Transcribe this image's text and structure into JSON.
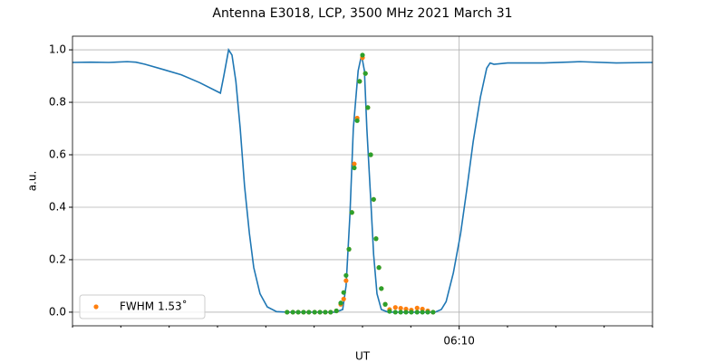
{
  "chart_data": {
    "type": "line",
    "title": "Antenna E3018, LCP, 3500 MHz 2021 March 31",
    "xlabel": "UT",
    "ylabel": "a.u.",
    "xlim": [
      362,
      374
    ],
    "ylim": [
      -0.052,
      1.052
    ],
    "xticks": [
      {
        "value": 370,
        "label": "06:10"
      }
    ],
    "xminorticks": [
      362,
      363,
      364,
      365,
      366,
      367,
      368,
      369,
      371,
      372,
      373,
      374
    ],
    "yticks": [
      {
        "value": 0,
        "label": "0.0"
      },
      0.2,
      0.4,
      0.6,
      0.8,
      {
        "value": 1,
        "label": "1.0"
      }
    ],
    "grid": true,
    "legend": "lower left",
    "series": [
      {
        "style": "line",
        "color": "#1f77b4",
        "x": [
          362.0,
          362.38,
          362.75,
          363.13,
          363.31,
          363.5,
          363.88,
          364.25,
          364.63,
          365.06,
          365.13,
          365.23,
          365.3,
          365.38,
          365.47,
          365.56,
          365.66,
          365.75,
          365.88,
          366.03,
          366.22,
          366.44,
          367.44,
          367.59,
          367.66,
          367.74,
          367.81,
          367.91,
          367.98,
          368.04,
          368.09,
          368.17,
          368.23,
          368.3,
          368.39,
          368.53,
          369.5,
          369.63,
          369.73,
          369.88,
          370.03,
          370.16,
          370.29,
          370.44,
          370.57,
          370.64,
          370.72,
          371.0,
          371.75,
          372.5,
          373.25,
          374.0
        ],
        "values": [
          0.952,
          0.953,
          0.952,
          0.955,
          0.953,
          0.945,
          0.925,
          0.905,
          0.875,
          0.835,
          0.9,
          1.0,
          0.98,
          0.88,
          0.7,
          0.48,
          0.3,
          0.17,
          0.07,
          0.02,
          0.002,
          0.0,
          0.0,
          0.01,
          0.1,
          0.37,
          0.7,
          0.92,
          0.98,
          0.92,
          0.7,
          0.43,
          0.22,
          0.07,
          0.01,
          0.0,
          0.0,
          0.01,
          0.04,
          0.15,
          0.3,
          0.47,
          0.65,
          0.82,
          0.93,
          0.95,
          0.945,
          0.95,
          0.95,
          0.955,
          0.95,
          0.952
        ]
      },
      {
        "style": "scatter",
        "name": "FWHM 1.53˚",
        "color": "#ff7f0e",
        "x": [
          366.44,
          366.56,
          366.67,
          366.78,
          366.89,
          367.01,
          367.12,
          367.23,
          367.34,
          367.46,
          367.55,
          367.61,
          367.66,
          367.72,
          367.78,
          367.83,
          367.89,
          367.94,
          368.0,
          368.06,
          368.11,
          368.17,
          368.23,
          368.28,
          368.34,
          368.39,
          368.47,
          368.56,
          368.68,
          368.79,
          368.9,
          369.01,
          369.13,
          369.24,
          369.35,
          369.46
        ],
        "values": [
          0,
          0,
          0,
          0,
          0,
          0,
          0,
          0,
          0,
          0.005,
          0.03,
          0.05,
          0.12,
          0.24,
          0.38,
          0.565,
          0.74,
          0.88,
          0.97,
          0.91,
          0.78,
          0.6,
          0.43,
          0.28,
          0.17,
          0.09,
          0.03,
          0.01,
          0.018,
          0.015,
          0.012,
          0.008,
          0.016,
          0.012,
          0.005,
          0
        ]
      },
      {
        "style": "scatter",
        "color": "#2ca02c",
        "x": [
          366.44,
          366.56,
          366.67,
          366.78,
          366.89,
          367.01,
          367.12,
          367.23,
          367.34,
          367.46,
          367.55,
          367.61,
          367.66,
          367.72,
          367.78,
          367.83,
          367.89,
          367.94,
          368.0,
          368.06,
          368.11,
          368.17,
          368.23,
          368.28,
          368.34,
          368.39,
          368.47,
          368.56,
          368.68,
          368.79,
          368.9,
          369.01,
          369.13,
          369.24,
          369.35,
          369.46
        ],
        "values": [
          0,
          0,
          0,
          0,
          0,
          0,
          0,
          0,
          0,
          0.005,
          0.035,
          0.075,
          0.14,
          0.24,
          0.38,
          0.55,
          0.73,
          0.88,
          0.98,
          0.91,
          0.78,
          0.6,
          0.43,
          0.28,
          0.17,
          0.09,
          0.03,
          0.003,
          0,
          0,
          0,
          0,
          0,
          0,
          0,
          0
        ]
      }
    ]
  }
}
